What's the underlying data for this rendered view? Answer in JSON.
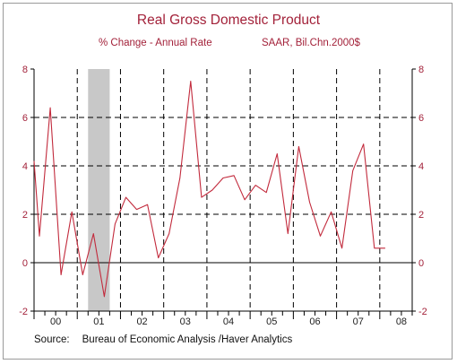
{
  "title": "Real Gross Domestic Product",
  "subtitle_left": "% Change - Annual Rate",
  "subtitle_right": "SAAR, Bil.Chn.2000$",
  "source_label": "Source:",
  "source_text": "Bureau of Economic Analysis /Haver Analytics",
  "colors": {
    "title": "#a3223a",
    "line": "#c22a3c",
    "axis_labels": "#a3223a",
    "recession": "#c8c8c8",
    "grid": "#000000"
  },
  "chart_data": {
    "type": "line",
    "title": "Real Gross Domestic Product",
    "subtitle": "% Change - Annual Rate",
    "units": "SAAR, Bil.Chn.2000$",
    "ylim": [
      -2,
      8
    ],
    "yticks": [
      -2,
      0,
      2,
      4,
      6,
      8
    ],
    "ytick_labels": [
      "-2",
      "0",
      "2",
      "4",
      "6",
      "8"
    ],
    "y_axis_sides": "left and right",
    "x_years": [
      "00",
      "01",
      "02",
      "03",
      "04",
      "05",
      "06",
      "07",
      "08"
    ],
    "x_start": 2000,
    "x_end": 2008.75,
    "gridlines": "dashed at each year start and at y = 2, 4, 6",
    "recession_shading": [
      2001.25,
      2001.75
    ],
    "series": [
      {
        "x": [
          2000.0,
          2000.125,
          2000.375,
          2000.625,
          2000.875,
          2001.125,
          2001.375,
          2001.625,
          2001.875,
          2002.125,
          2002.375,
          2002.625,
          2002.875,
          2003.125,
          2003.375,
          2003.625,
          2003.875,
          2004.125,
          2004.375,
          2004.625,
          2004.875,
          2005.125,
          2005.375,
          2005.625,
          2005.875,
          2006.125,
          2006.375,
          2006.625,
          2006.875,
          2007.125,
          2007.375,
          2007.625,
          2007.875,
          2008.125
        ],
        "values": [
          4.2,
          1.1,
          6.4,
          -0.5,
          2.1,
          -0.5,
          1.2,
          -1.4,
          1.6,
          2.7,
          2.2,
          2.4,
          0.2,
          1.2,
          3.5,
          7.5,
          2.7,
          3.0,
          3.5,
          3.6,
          2.6,
          3.2,
          2.9,
          4.5,
          1.2,
          4.8,
          2.5,
          1.1,
          2.1,
          0.6,
          3.8,
          4.9,
          0.6,
          0.6
        ]
      }
    ]
  }
}
